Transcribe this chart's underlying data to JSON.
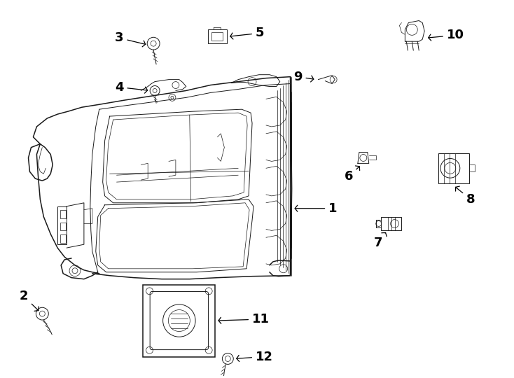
{
  "background_color": "#ffffff",
  "line_color": "#1a1a1a",
  "label_color": "#000000",
  "fig_width": 7.34,
  "fig_height": 5.4,
  "dpi": 100,
  "label_fontsize": 13
}
